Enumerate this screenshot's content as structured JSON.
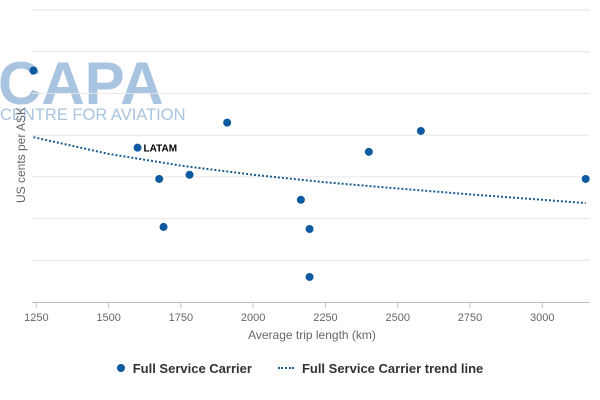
{
  "watermark": {
    "logo_text": "CAPA",
    "subtitle": "CENTRE FOR AVIATION",
    "color": "#a8c4e0"
  },
  "chart_data": {
    "type": "scatter",
    "title": "",
    "xlabel": "Average trip length (km)",
    "ylabel": "US cents per ASK",
    "xlim": [
      1235,
      3165
    ],
    "ylim": [
      0,
      7
    ],
    "x_ticks": [
      "1250",
      "1500",
      "1750",
      "2000",
      "2250",
      "2500",
      "2750",
      "3000"
    ],
    "x_tick_values": [
      1250,
      1500,
      1750,
      2000,
      2250,
      2500,
      2750,
      3000
    ],
    "y_gridlines": [
      1,
      2,
      3,
      4,
      5,
      6,
      7
    ],
    "grid": "horizontal",
    "legend_position": "bottom",
    "series": [
      {
        "name": "Full Service Carrier",
        "color": "#0d5aa0",
        "points": [
          {
            "x": 1240,
            "y": 5.55
          },
          {
            "x": 1600,
            "y": 3.7,
            "label": "LATAM"
          },
          {
            "x": 1675,
            "y": 2.95
          },
          {
            "x": 1690,
            "y": 1.8
          },
          {
            "x": 1780,
            "y": 3.05
          },
          {
            "x": 1910,
            "y": 4.3
          },
          {
            "x": 2165,
            "y": 2.45
          },
          {
            "x": 2195,
            "y": 1.75
          },
          {
            "x": 2195,
            "y": 0.6
          },
          {
            "x": 2400,
            "y": 3.6
          },
          {
            "x": 2580,
            "y": 4.1
          },
          {
            "x": 3150,
            "y": 2.95
          }
        ]
      }
    ],
    "trend": {
      "name": "Full Service Carrier trend line",
      "color": "#1a5d8f",
      "style": "dotted",
      "points": [
        {
          "x": 1240,
          "y": 3.95
        },
        {
          "x": 1500,
          "y": 3.55
        },
        {
          "x": 1750,
          "y": 3.27
        },
        {
          "x": 2000,
          "y": 3.05
        },
        {
          "x": 2250,
          "y": 2.87
        },
        {
          "x": 2500,
          "y": 2.72
        },
        {
          "x": 2750,
          "y": 2.58
        },
        {
          "x": 3000,
          "y": 2.45
        },
        {
          "x": 3150,
          "y": 2.37
        }
      ]
    }
  }
}
